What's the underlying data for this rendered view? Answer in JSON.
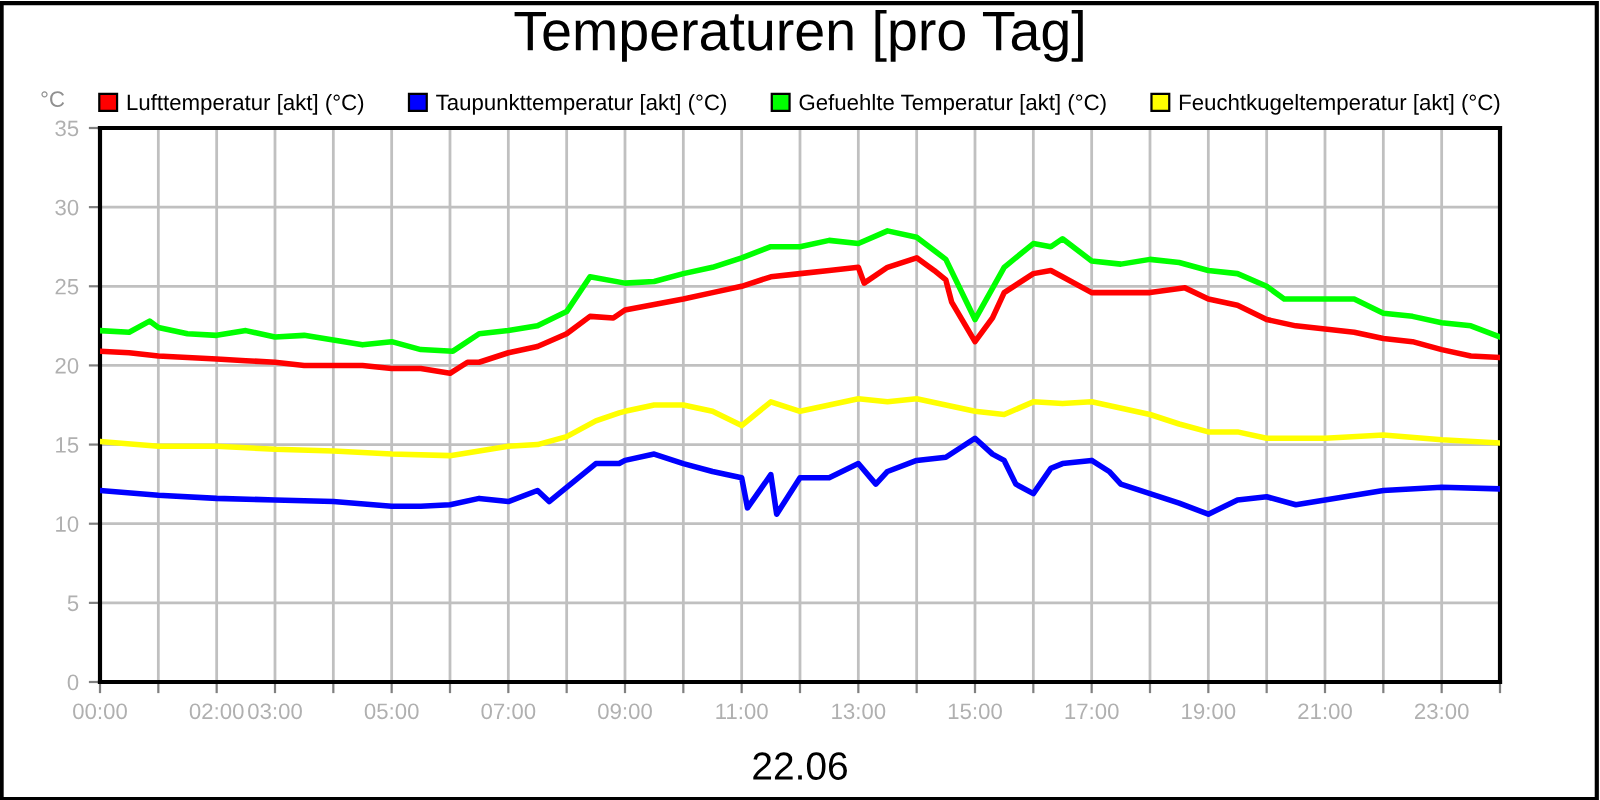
{
  "chart_data": {
    "type": "line",
    "title": "Temperaturen [pro Tag]",
    "xlabel": "22.06",
    "ylabel": "°C",
    "xlim": [
      0,
      24
    ],
    "ylim": [
      0,
      35
    ],
    "yticks": [
      0,
      5,
      10,
      15,
      20,
      25,
      30,
      35
    ],
    "xticks": [
      {
        "value": 0,
        "label": "00:00"
      },
      {
        "value": 1,
        "label": null
      },
      {
        "value": 2,
        "label": "02:00"
      },
      {
        "value": 3,
        "label": "03:00"
      },
      {
        "value": 4,
        "label": null
      },
      {
        "value": 5,
        "label": "05:00"
      },
      {
        "value": 6,
        "label": null
      },
      {
        "value": 7,
        "label": "07:00"
      },
      {
        "value": 8,
        "label": null
      },
      {
        "value": 9,
        "label": "09:00"
      },
      {
        "value": 10,
        "label": null
      },
      {
        "value": 11,
        "label": "11:00"
      },
      {
        "value": 12,
        "label": null
      },
      {
        "value": 13,
        "label": "13:00"
      },
      {
        "value": 14,
        "label": null
      },
      {
        "value": 15,
        "label": "15:00"
      },
      {
        "value": 16,
        "label": null
      },
      {
        "value": 17,
        "label": "17:00"
      },
      {
        "value": 18,
        "label": null
      },
      {
        "value": 19,
        "label": "19:00"
      },
      {
        "value": 20,
        "label": null
      },
      {
        "value": 21,
        "label": "21:00"
      },
      {
        "value": 22,
        "label": null
      },
      {
        "value": 23,
        "label": "23:00"
      },
      {
        "value": 24,
        "label": null
      }
    ],
    "grid": true,
    "legend": "top",
    "marker": "none",
    "line_style": "solid",
    "series": [
      {
        "name": "Lufttemperatur [akt] (°C)",
        "color": "#ff0000",
        "x": [
          0,
          0.5,
          1,
          1.5,
          2,
          2.5,
          3,
          3.5,
          4,
          4.5,
          5,
          5.5,
          6,
          6.3,
          6.5,
          7,
          7.5,
          8,
          8.4,
          8.8,
          9,
          10,
          10.5,
          11,
          11.5,
          12,
          12.5,
          13,
          13.1,
          13.5,
          14,
          14.3,
          14.5,
          14.6,
          15,
          15.3,
          15.5,
          16,
          16.3,
          16.5,
          17,
          18,
          18.6,
          19,
          19.5,
          20,
          20.5,
          21,
          21.5,
          22,
          22.5,
          23,
          23.5,
          24
        ],
        "values": [
          20.9,
          20.8,
          20.6,
          20.5,
          20.4,
          20.3,
          20.2,
          20.0,
          20.0,
          20.0,
          19.8,
          19.8,
          19.5,
          20.2,
          20.2,
          20.8,
          21.2,
          22.0,
          23.1,
          23.0,
          23.5,
          24.2,
          24.6,
          25.0,
          25.6,
          25.8,
          26.0,
          26.2,
          25.2,
          26.2,
          26.8,
          26.0,
          25.4,
          24.0,
          21.5,
          23.0,
          24.6,
          25.8,
          26.0,
          25.6,
          24.6,
          24.6,
          24.9,
          24.2,
          23.8,
          22.9,
          22.5,
          22.3,
          22.1,
          21.7,
          21.5,
          21.0,
          20.6,
          20.5
        ]
      },
      {
        "name": "Taupunkttemperatur [akt] (°C)",
        "color": "#0000ff",
        "x": [
          0,
          1,
          2,
          3,
          4,
          5,
          5.5,
          6,
          6.5,
          7,
          7.5,
          7.7,
          8,
          8.5,
          8.9,
          9,
          9.5,
          10,
          10.5,
          11,
          11.1,
          11.5,
          11.6,
          12,
          12.5,
          13,
          13.3,
          13.5,
          14,
          14.5,
          15,
          15.3,
          15.5,
          15.7,
          16,
          16.3,
          16.5,
          17,
          17.3,
          17.5,
          18,
          18.5,
          19,
          19.5,
          20,
          20.5,
          21,
          22,
          23,
          24
        ],
        "values": [
          12.1,
          11.8,
          11.6,
          11.5,
          11.4,
          11.1,
          11.1,
          11.2,
          11.6,
          11.4,
          12.1,
          11.4,
          12.3,
          13.8,
          13.8,
          14.0,
          14.4,
          13.8,
          13.3,
          12.9,
          11.0,
          13.1,
          10.6,
          12.9,
          12.9,
          13.8,
          12.5,
          13.3,
          14.0,
          14.2,
          15.4,
          14.4,
          14.0,
          12.5,
          11.9,
          13.5,
          13.8,
          14.0,
          13.3,
          12.5,
          11.9,
          11.3,
          10.6,
          11.5,
          11.7,
          11.2,
          11.5,
          12.1,
          12.3,
          12.2
        ]
      },
      {
        "name": "Gefuehlte Temperatur [akt] (°C)",
        "color": "#00ff00",
        "x": [
          0,
          0.5,
          0.85,
          1,
          1.5,
          2,
          2.5,
          3,
          3.5,
          4,
          4.5,
          5,
          5.5,
          6.05,
          6.5,
          7,
          7.5,
          8,
          8.4,
          9,
          9.5,
          10,
          10.5,
          11,
          11.5,
          12,
          12.5,
          13,
          13.5,
          14,
          14.5,
          15,
          15.5,
          16,
          16.3,
          16.5,
          17,
          17.5,
          18,
          18.5,
          19,
          19.5,
          20,
          20.3,
          21,
          21.5,
          22,
          22.5,
          23,
          23.5,
          24
        ],
        "values": [
          22.2,
          22.1,
          22.8,
          22.4,
          22.0,
          21.9,
          22.2,
          21.8,
          21.9,
          21.6,
          21.3,
          21.5,
          21.0,
          20.9,
          22.0,
          22.2,
          22.5,
          23.4,
          25.6,
          25.2,
          25.3,
          25.8,
          26.2,
          26.8,
          27.5,
          27.5,
          27.9,
          27.7,
          28.5,
          28.1,
          26.7,
          22.9,
          26.2,
          27.7,
          27.5,
          28.0,
          26.6,
          26.4,
          26.7,
          26.5,
          26.0,
          25.8,
          25.0,
          24.2,
          24.2,
          24.2,
          23.3,
          23.1,
          22.7,
          22.5,
          21.8
        ]
      },
      {
        "name": "Feuchtkugeltemperatur [akt] (°C)",
        "color": "#ffff00",
        "x": [
          0,
          1,
          2,
          3,
          4,
          5,
          6,
          6.5,
          7,
          7.5,
          8,
          8.5,
          8.9,
          9,
          9.5,
          10,
          10.5,
          11,
          11.5,
          12,
          12.5,
          13,
          13.5,
          14,
          14.5,
          15,
          15.5,
          16,
          16.5,
          17,
          18,
          18.5,
          19,
          19.5,
          20,
          21,
          22,
          23,
          24
        ],
        "values": [
          15.2,
          14.9,
          14.9,
          14.7,
          14.6,
          14.4,
          14.3,
          14.6,
          14.9,
          15.0,
          15.5,
          16.5,
          17.0,
          17.1,
          17.5,
          17.5,
          17.1,
          16.2,
          17.7,
          17.1,
          17.5,
          17.9,
          17.7,
          17.9,
          17.5,
          17.1,
          16.9,
          17.7,
          17.6,
          17.7,
          16.9,
          16.3,
          15.8,
          15.8,
          15.4,
          15.4,
          15.6,
          15.3,
          15.1
        ]
      }
    ]
  }
}
